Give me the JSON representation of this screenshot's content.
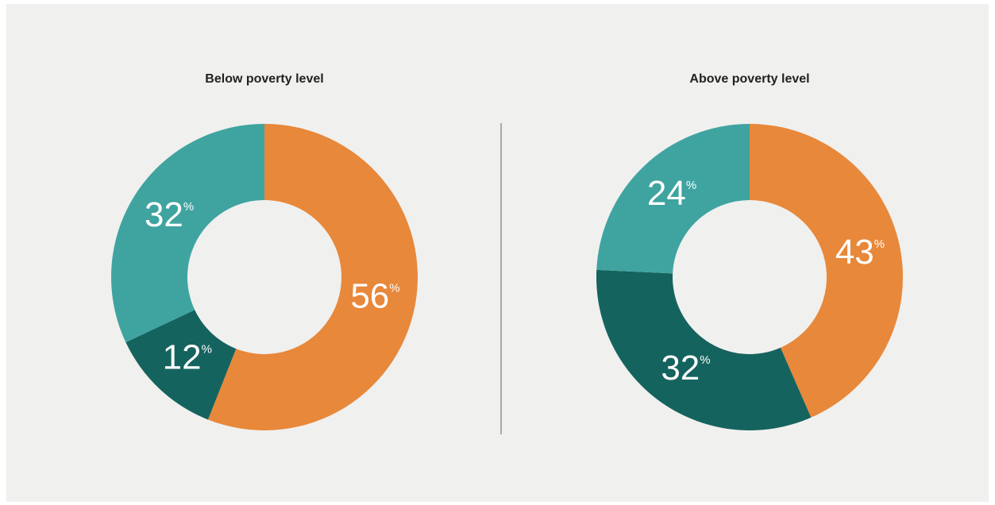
{
  "chart_data": [
    {
      "type": "donut",
      "title": "Below poverty level",
      "values": [
        56,
        12,
        32
      ],
      "value_labels": [
        "56%",
        "12%",
        "32%"
      ],
      "colors": [
        "#e8883a",
        "#15635e",
        "#3fa4a0"
      ]
    },
    {
      "type": "donut",
      "title": "Above poverty level",
      "values": [
        43,
        32,
        24
      ],
      "value_labels": [
        "43%",
        "32%",
        "24%"
      ],
      "colors": [
        "#e8883a",
        "#15635e",
        "#3fa4a0"
      ]
    }
  ]
}
